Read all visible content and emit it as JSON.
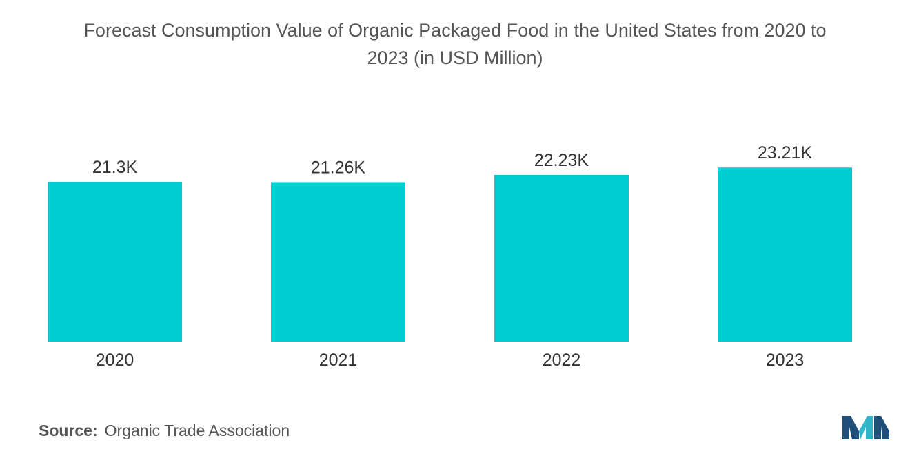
{
  "title_line1": "Forecast Consumption Value of Organic Packaged Food in the United States from 2020 to",
  "title_line2": "2023 (in USD Million)",
  "source_label": "Source:",
  "source_text": "Organic Trade Association",
  "colors": {
    "bar": "#00CED1",
    "text": "#333333",
    "title": "#555555",
    "logo_dark": "#1f4e79",
    "logo_light": "#2fb5c8"
  },
  "chart_data": {
    "type": "bar",
    "title": "Forecast Consumption Value of Organic Packaged Food in the United States from 2020 to 2023 (in USD Million)",
    "categories": [
      "2020",
      "2021",
      "2022",
      "2023"
    ],
    "values": [
      21300,
      21260,
      22230,
      23210
    ],
    "data_labels": [
      "21.3K",
      "21.26K",
      "22.23K",
      "23.21K"
    ],
    "xlabel": "",
    "ylabel": "",
    "grid": false,
    "legend": "none"
  }
}
